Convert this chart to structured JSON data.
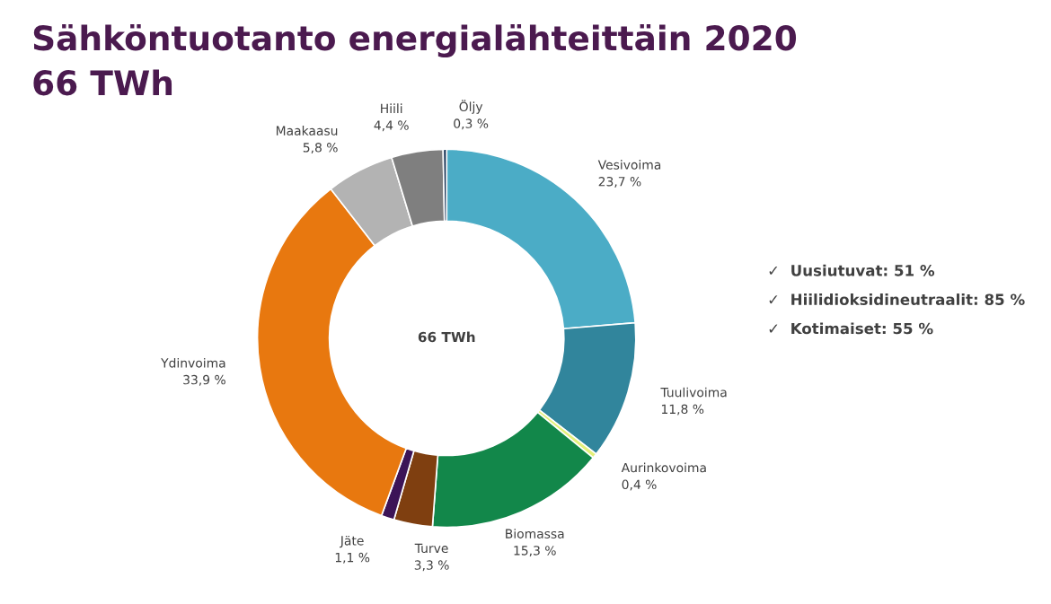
{
  "chart_data": {
    "type": "donut",
    "title": "Sähköntuotanto energialähteittäin 2020",
    "subtitle": "66 TWh",
    "categories": [
      "Vesivoima",
      "Tuulivoima",
      "Aurinkovoima",
      "Biomassa",
      "Turve",
      "Jäte",
      "Ydinvoima",
      "Maakaasu",
      "Hiili",
      "Öljy"
    ],
    "values": [
      23.7,
      11.8,
      0.4,
      15.3,
      3.3,
      1.1,
      33.9,
      5.8,
      4.4,
      0.3
    ],
    "value_labels": [
      "23,7 %",
      "11,8 %",
      "0,4 %",
      "15,3 %",
      "3,3 %",
      "1,1 %",
      "33,9 %",
      "5,8 %",
      "4,4 %",
      "0,3 %"
    ],
    "colors": [
      "#4bacc6",
      "#31859c",
      "#e4f07a",
      "#12874a",
      "#7f3f10",
      "#3c1457",
      "#e8780f",
      "#b3b3b3",
      "#7f7f7f",
      "#1f3b5c"
    ],
    "annotations": [
      "66 TWh",
      "✓  Uusiutuvat: 51 %",
      "✓  Hiilidioksidineutraalit: 85 %",
      "✓  Kotimaiset: 55 %"
    ],
    "legend": false
  }
}
